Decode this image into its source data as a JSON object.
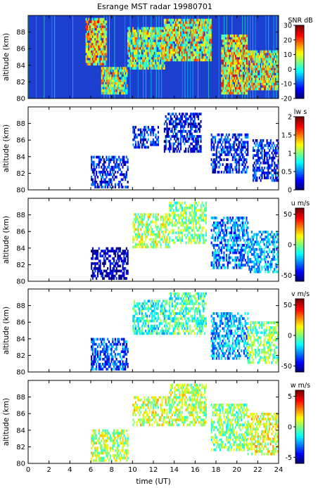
{
  "chart_data": {
    "type": "heatmap",
    "title": "Esrange MST radar 19980701",
    "xlabel": "time (UT)",
    "x_ticks": [
      0,
      2,
      4,
      6,
      8,
      10,
      12,
      14,
      16,
      18,
      20,
      22,
      24
    ],
    "xlim": [
      0,
      24
    ],
    "panels": [
      {
        "id": "snr",
        "ylabel": "altitude (km)",
        "ylim": [
          80,
          90
        ],
        "y_ticks": [
          80,
          82,
          84,
          86,
          88
        ],
        "colorbar_label": "SNR dB",
        "clim": [
          -20,
          30
        ],
        "colorbar_ticks": [
          -20,
          -10,
          0,
          10,
          20,
          30
        ],
        "colormap": "jet",
        "background": "#1c3fd0",
        "features": [
          {
            "t": [
              5.5,
              7.5
            ],
            "alt": [
              84,
              89.5
            ],
            "level": 0.65
          },
          {
            "t": [
              7.0,
              9.5
            ],
            "alt": [
              80.5,
              83.5
            ],
            "level": 0.55
          },
          {
            "t": [
              9.5,
              13.0
            ],
            "alt": [
              83.5,
              88.5
            ],
            "level": 0.55
          },
          {
            "t": [
              13.0,
              17.5
            ],
            "alt": [
              84.5,
              89.5
            ],
            "level": 0.6
          },
          {
            "t": [
              18.5,
              21.0
            ],
            "alt": [
              80.5,
              87.5
            ],
            "level": 0.65
          },
          {
            "t": [
              21.0,
              24.0
            ],
            "alt": [
              81.0,
              85.5
            ],
            "level": 0.6
          }
        ]
      },
      {
        "id": "lw",
        "ylabel": "altitude (km)",
        "ylim": [
          80,
          90
        ],
        "y_ticks": [
          80,
          82,
          84,
          86,
          88
        ],
        "colorbar_label": "lw s",
        "clim": [
          0,
          2
        ],
        "colorbar_ticks": [
          0,
          0.5,
          1,
          1.5,
          2
        ],
        "colormap": "jet",
        "background": "#ffffff",
        "features": [
          {
            "t": [
              6.0,
              9.5
            ],
            "alt": [
              80.2,
              84.0
            ],
            "level": 0.15
          },
          {
            "t": [
              10.0,
              12.5
            ],
            "alt": [
              85.0,
              87.5
            ],
            "level": 0.15
          },
          {
            "t": [
              13.0,
              16.5
            ],
            "alt": [
              84.5,
              89.0
            ],
            "level": 0.12
          },
          {
            "t": [
              17.5,
              21.0
            ],
            "alt": [
              82.0,
              86.5
            ],
            "level": 0.15
          },
          {
            "t": [
              21.5,
              24.0
            ],
            "alt": [
              81.0,
              86.0
            ],
            "level": 0.15
          }
        ]
      },
      {
        "id": "u",
        "ylabel": "altitude (km)",
        "ylim": [
          80,
          90
        ],
        "y_ticks": [
          80,
          82,
          84,
          86,
          88
        ],
        "colorbar_label": "u m/s",
        "clim": [
          -60,
          60
        ],
        "colorbar_ticks": [
          -50,
          0,
          50
        ],
        "colormap": "jet",
        "background": "#ffffff",
        "features": [
          {
            "t": [
              6.0,
              9.5
            ],
            "alt": [
              80.2,
              84.0
            ],
            "level": 0.05
          },
          {
            "t": [
              10.0,
              13.5
            ],
            "alt": [
              84.0,
              88.0
            ],
            "level": 0.55
          },
          {
            "t": [
              13.5,
              17.0
            ],
            "alt": [
              84.5,
              89.5
            ],
            "level": 0.5
          },
          {
            "t": [
              17.5,
              21.0
            ],
            "alt": [
              81.5,
              87.5
            ],
            "level": 0.25
          },
          {
            "t": [
              21.0,
              24.0
            ],
            "alt": [
              81.0,
              86.0
            ],
            "level": 0.3
          }
        ]
      },
      {
        "id": "v",
        "ylabel": "altitude (km)",
        "ylim": [
          80,
          90
        ],
        "y_ticks": [
          80,
          82,
          84,
          86,
          88
        ],
        "colorbar_label": "v m/s",
        "clim": [
          -60,
          60
        ],
        "colorbar_ticks": [
          -50,
          0,
          50
        ],
        "colormap": "jet",
        "background": "#ffffff",
        "features": [
          {
            "t": [
              6.0,
              9.5
            ],
            "alt": [
              80.2,
              84.0
            ],
            "level": 0.2
          },
          {
            "t": [
              10.0,
              13.5
            ],
            "alt": [
              84.5,
              88.5
            ],
            "level": 0.4
          },
          {
            "t": [
              13.5,
              17.0
            ],
            "alt": [
              84.5,
              89.5
            ],
            "level": 0.45
          },
          {
            "t": [
              17.5,
              21.0
            ],
            "alt": [
              81.5,
              87.0
            ],
            "level": 0.3
          },
          {
            "t": [
              21.0,
              24.0
            ],
            "alt": [
              81.0,
              86.0
            ],
            "level": 0.5
          }
        ]
      },
      {
        "id": "w",
        "ylabel": "altitude (km)",
        "ylim": [
          80,
          90
        ],
        "y_ticks": [
          80,
          82,
          84,
          86,
          88
        ],
        "colorbar_label": "w m/s",
        "clim": [
          -6,
          6
        ],
        "colorbar_ticks": [
          -5,
          0,
          5
        ],
        "colormap": "jet",
        "background": "#ffffff",
        "features": [
          {
            "t": [
              6.0,
              9.5
            ],
            "alt": [
              80.2,
              84.0
            ],
            "level": 0.55
          },
          {
            "t": [
              10.0,
              13.5
            ],
            "alt": [
              84.5,
              88.0
            ],
            "level": 0.58
          },
          {
            "t": [
              13.5,
              17.0
            ],
            "alt": [
              84.5,
              89.5
            ],
            "level": 0.55
          },
          {
            "t": [
              17.5,
              21.0
            ],
            "alt": [
              81.5,
              87.0
            ],
            "level": 0.5
          },
          {
            "t": [
              21.0,
              24.0
            ],
            "alt": [
              81.0,
              86.0
            ],
            "level": 0.6
          }
        ]
      }
    ]
  }
}
